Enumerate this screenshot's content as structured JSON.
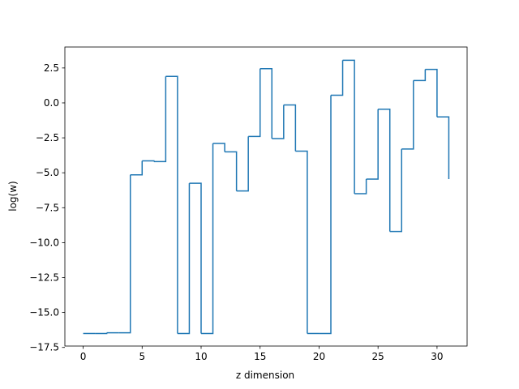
{
  "chart_data": {
    "type": "line",
    "step": "post",
    "xlabel": "z dimension",
    "ylabel": "log(w)",
    "xlim": [
      -1.55,
      32.55
    ],
    "ylim": [
      -17.4,
      4.0
    ],
    "xticks": [
      0,
      5,
      10,
      15,
      20,
      25,
      30
    ],
    "yticks": [
      2.5,
      0.0,
      -2.5,
      -5.0,
      -7.5,
      -10.0,
      -12.5,
      -15.0,
      -17.5
    ],
    "ytick_labels": [
      "2.5",
      "0.0",
      "−2.5",
      "−5.0",
      "−7.5",
      "−10.0",
      "−12.5",
      "−15.0",
      "−17.5"
    ],
    "grid": false,
    "series": [
      {
        "color": "#1f77b4",
        "x": [
          0,
          1,
          2,
          3,
          4,
          5,
          6,
          7,
          8,
          9,
          10,
          11,
          12,
          13,
          14,
          15,
          16,
          17,
          18,
          19,
          20,
          21,
          22,
          23,
          24,
          25,
          26,
          27,
          28,
          29,
          30,
          31
        ],
        "y": [
          -16.5,
          -16.5,
          -16.45,
          -16.45,
          -5.15,
          -4.15,
          -4.2,
          1.9,
          -16.5,
          -5.75,
          -16.5,
          -2.9,
          -3.5,
          -6.3,
          -2.4,
          2.45,
          -2.55,
          -0.15,
          -3.45,
          -16.5,
          -16.5,
          0.55,
          3.05,
          -6.5,
          -5.45,
          -0.45,
          -9.2,
          -3.3,
          1.6,
          2.4,
          -1.0,
          -5.45
        ]
      }
    ]
  }
}
